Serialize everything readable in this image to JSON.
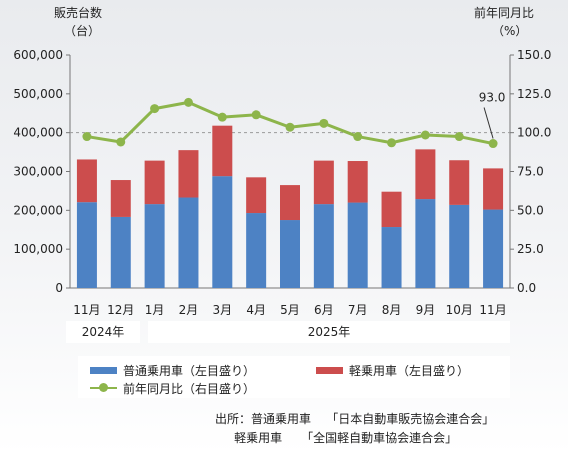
{
  "chart_data": {
    "type": "bar",
    "stacked": true,
    "left_axis_title": [
      "販売台数",
      "（台）"
    ],
    "right_axis_title": [
      "前年同月比",
      "（%）"
    ],
    "categories": [
      "11月",
      "12月",
      "1月",
      "2月",
      "3月",
      "4月",
      "5月",
      "6月",
      "7月",
      "8月",
      "9月",
      "10月",
      "11月"
    ],
    "year_groups": [
      {
        "label": "2024年",
        "months": [
          "11月",
          "12月"
        ]
      },
      {
        "label": "2025年",
        "months": [
          "1月",
          "2月",
          "3月",
          "4月",
          "5月",
          "6月",
          "7月",
          "8月",
          "9月",
          "10月",
          "11月"
        ]
      }
    ],
    "series": [
      {
        "name": "普通乗用車（左目盛り）",
        "axis": "left",
        "color": "#4d82c4",
        "values": [
          221000,
          183000,
          216000,
          233000,
          288000,
          193000,
          175000,
          216000,
          220000,
          157000,
          229000,
          214000,
          202000
        ]
      },
      {
        "name": "軽乗用車（左目盛り）",
        "axis": "left",
        "color": "#cc4d4d",
        "values": [
          110000,
          95000,
          112000,
          122000,
          130000,
          92000,
          90000,
          112000,
          107000,
          91000,
          128000,
          115000,
          106000
        ]
      },
      {
        "name": "前年同月比（右目盛り）",
        "axis": "right",
        "type": "line",
        "color": "#8db54b",
        "values": [
          97.5,
          94.0,
          115.5,
          119.5,
          110.0,
          111.5,
          103.5,
          106.0,
          97.5,
          93.5,
          98.5,
          97.5,
          93.0
        ]
      }
    ],
    "left_ylim": [
      0,
      600000
    ],
    "left_ticks": [
      "0",
      "100,000",
      "200,000",
      "300,000",
      "400,000",
      "500,000",
      "600,000"
    ],
    "right_ylim": [
      0,
      150
    ],
    "right_ticks": [
      "0.0",
      "25.0",
      "50.0",
      "75.0",
      "100.0",
      "125.0",
      "150.0"
    ],
    "reference_line": 100,
    "annotation": {
      "text": "93.0",
      "index": 12
    },
    "legend_position": "bottom"
  },
  "source": {
    "label": "出所：",
    "lines": [
      {
        "category": "普通乗用車",
        "org": "「日本自動車販売協会連合会」"
      },
      {
        "category": "軽乗用車",
        "org": "「全国軽自動車協会連合会」"
      }
    ]
  }
}
